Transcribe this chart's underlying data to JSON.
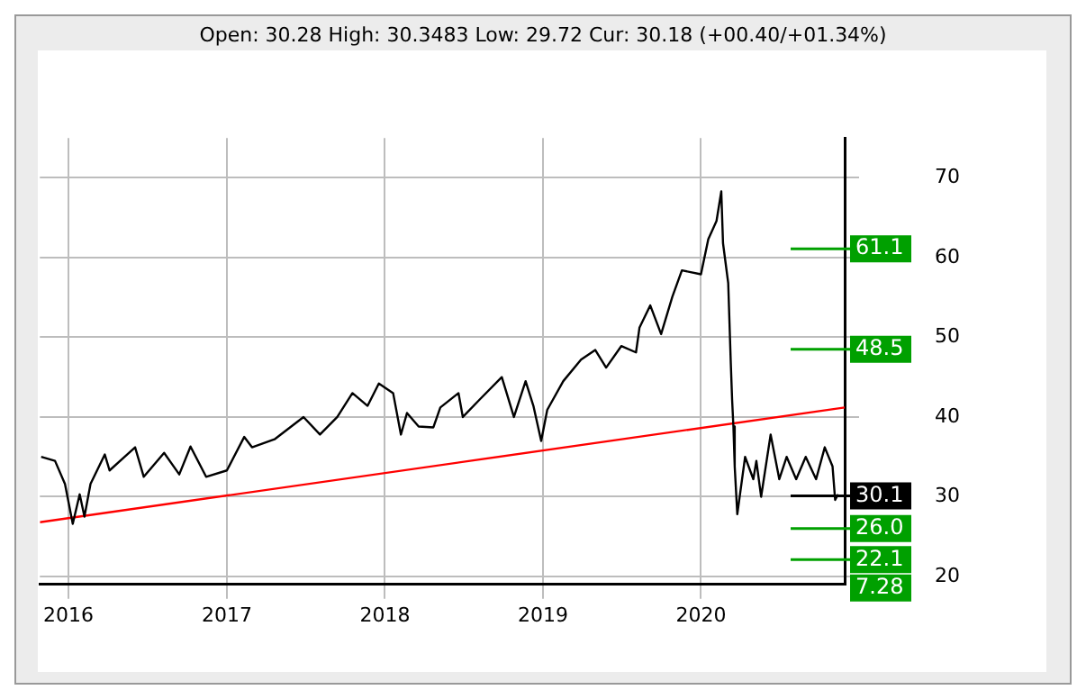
{
  "chart_data": {
    "type": "line",
    "subtitle": "Open: 30.28 High: 30.3483 Low: 29.72 Cur: 30.18 (+00.40/+01.34%)",
    "xlim": [
      "2015-10-27",
      "2020-11-28"
    ],
    "xticks": [
      "2016",
      "2017",
      "2018",
      "2019",
      "2020"
    ],
    "ylim": [
      19,
      75
    ],
    "yticks": [
      20,
      30,
      40,
      50,
      60,
      70
    ],
    "grid": true,
    "legend": false,
    "marker": "none",
    "line_style": "solid",
    "series": [
      {
        "color": "#000000",
        "x": [
          "2015-10-30",
          "2015-12-01",
          "2015-12-24",
          "2016-01-11",
          "2016-01-27",
          "2016-02-07",
          "2016-02-21",
          "2016-03-25",
          "2016-04-05",
          "2016-06-03",
          "2016-06-23",
          "2016-08-09",
          "2016-09-13",
          "2016-10-09",
          "2016-11-14",
          "2017-01-01",
          "2017-02-10",
          "2017-02-28",
          "2017-04-21",
          "2017-06-27",
          "2017-08-04",
          "2017-09-13",
          "2017-10-18",
          "2017-11-22",
          "2017-12-18",
          "2018-01-20",
          "2018-02-07",
          "2018-02-21",
          "2018-03-20",
          "2018-04-23",
          "2018-05-09",
          "2018-06-20",
          "2018-06-30",
          "2018-08-08",
          "2018-09-28",
          "2018-10-26",
          "2018-11-22",
          "2018-12-10",
          "2018-12-28",
          "2019-01-11",
          "2019-02-17",
          "2019-03-30",
          "2019-05-02",
          "2019-05-27",
          "2019-07-01",
          "2019-08-04",
          "2019-08-12",
          "2019-09-06",
          "2019-10-01",
          "2019-10-27",
          "2019-11-18",
          "2020-01-01",
          "2020-01-18",
          "2020-02-06",
          "2020-02-17",
          "2020-02-21",
          "2020-03-04",
          "2020-03-10",
          "2020-03-13",
          "2020-03-16",
          "2020-03-19",
          "2020-03-25",
          "2020-04-12",
          "2020-05-01",
          "2020-05-08",
          "2020-05-19",
          "2020-06-10",
          "2020-06-30",
          "2020-07-17",
          "2020-08-08",
          "2020-08-30",
          "2020-09-23",
          "2020-10-13",
          "2020-10-31",
          "2020-11-06",
          "2020-11-13"
        ],
        "values": [
          35.0,
          34.5,
          31.6,
          26.6,
          30.3,
          27.5,
          31.6,
          35.3,
          33.3,
          36.2,
          32.5,
          35.5,
          32.8,
          36.3,
          32.5,
          33.3,
          37.5,
          36.2,
          37.2,
          40.0,
          37.8,
          40.0,
          43.0,
          41.4,
          44.2,
          43.0,
          37.8,
          40.5,
          38.8,
          38.7,
          41.2,
          43.0,
          40.0,
          42.2,
          45.0,
          40.0,
          44.5,
          41.4,
          37.0,
          40.9,
          44.5,
          47.2,
          48.4,
          46.2,
          48.9,
          48.1,
          51.2,
          54.0,
          50.4,
          55.1,
          58.4,
          57.9,
          62.3,
          64.6,
          68.3,
          61.8,
          56.8,
          46.7,
          42.2,
          38.8,
          33.8,
          27.8,
          35.0,
          32.2,
          34.5,
          30.0,
          37.8,
          32.2,
          35.0,
          32.2,
          35.0,
          32.2,
          36.2,
          33.8,
          29.6,
          30.3
        ]
      },
      {
        "type": "line",
        "color": "#ff0000",
        "x": [
          "2015-10-27",
          "2020-11-28"
        ],
        "values": [
          26.8,
          41.2
        ]
      }
    ],
    "ref_lines": [
      {
        "axis": "y",
        "value": 61.1,
        "label": "61.1",
        "color": "#00a000"
      },
      {
        "axis": "y",
        "value": 48.5,
        "label": "48.5",
        "color": "#00a000"
      },
      {
        "axis": "y",
        "value": 30.1,
        "label": "30.1",
        "color": "#000000"
      },
      {
        "axis": "y",
        "value": 26.0,
        "label": "26.0",
        "color": "#00a000"
      },
      {
        "axis": "y",
        "value": 22.1,
        "label": "22.1",
        "color": "#00a000"
      }
    ],
    "annotations": [
      "7.28"
    ]
  }
}
